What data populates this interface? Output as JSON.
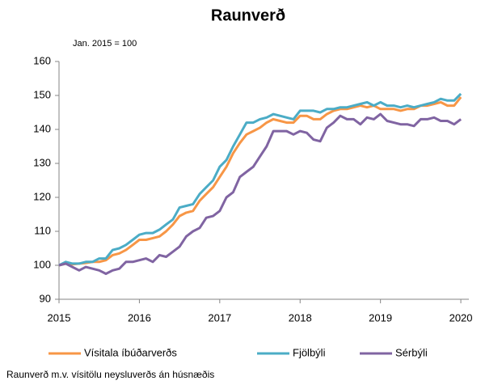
{
  "chart_data": {
    "type": "line",
    "title": "Raunverð",
    "subtitle": "Jan. 2015 = 100",
    "note": "Raunverð m.v. vísitölu neysluverðs án húsnæðis",
    "x": [
      2015,
      2015.083,
      2015.167,
      2015.25,
      2015.333,
      2015.417,
      2015.5,
      2015.583,
      2015.667,
      2015.75,
      2015.833,
      2015.917,
      2016,
      2016.083,
      2016.167,
      2016.25,
      2016.333,
      2016.417,
      2016.5,
      2016.583,
      2016.667,
      2016.75,
      2016.833,
      2016.917,
      2017,
      2017.083,
      2017.167,
      2017.25,
      2017.333,
      2017.417,
      2017.5,
      2017.583,
      2017.667,
      2017.75,
      2017.833,
      2017.917,
      2018,
      2018.083,
      2018.167,
      2018.25,
      2018.333,
      2018.417,
      2018.5,
      2018.583,
      2018.667,
      2018.75,
      2018.833,
      2018.917,
      2019,
      2019.083,
      2019.167,
      2019.25,
      2019.333,
      2019.417,
      2019.5,
      2019.583,
      2019.667,
      2019.75,
      2019.833,
      2019.917,
      2020
    ],
    "series": [
      {
        "name": "Vísitala íbúðarverðs",
        "color": "#f79646",
        "values": [
          100,
          100.5,
          100.3,
          100.5,
          100.7,
          101,
          101,
          101.5,
          103,
          103.5,
          104.5,
          106,
          107.5,
          107.5,
          108,
          108.5,
          110,
          112,
          114.5,
          115.5,
          116,
          119,
          121,
          123,
          126,
          129,
          133,
          136,
          138.5,
          139.5,
          140.5,
          142,
          143,
          142.5,
          142,
          142,
          144,
          144,
          143,
          143,
          144.5,
          145.5,
          146,
          146,
          146.5,
          147,
          146.5,
          147,
          146,
          146,
          146,
          145.5,
          146,
          146,
          147,
          147,
          147.5,
          148,
          147,
          147,
          149.5
        ]
      },
      {
        "name": "Fjölbýli",
        "color": "#4bacc6",
        "values": [
          100,
          101,
          100.5,
          100.5,
          101,
          101,
          102,
          102,
          104.5,
          105,
          106,
          107.5,
          109,
          109.5,
          109.5,
          110.5,
          112,
          113.5,
          117,
          117.5,
          118,
          121,
          123,
          125,
          129,
          131,
          135,
          138.5,
          142,
          142,
          143,
          143.5,
          144.5,
          144,
          143.5,
          143,
          145.5,
          145.5,
          145.5,
          145,
          146,
          146,
          146.5,
          146.5,
          147,
          147.5,
          148,
          147,
          148,
          147,
          147,
          146.5,
          147,
          146.5,
          147,
          147.5,
          148,
          149,
          148.5,
          148.5,
          150.5
        ]
      },
      {
        "name": "Sérbýli",
        "color": "#8064a2",
        "values": [
          100,
          100.5,
          99.5,
          98.5,
          99.5,
          99,
          98.5,
          97.5,
          98.5,
          99,
          101,
          101,
          101.5,
          102,
          101,
          103,
          102.5,
          104,
          105.5,
          108.5,
          110,
          111,
          114,
          114.5,
          116,
          120,
          121.5,
          126,
          127.5,
          129,
          132,
          135,
          139.5,
          139.5,
          139.5,
          138.5,
          139.5,
          139,
          137,
          136.5,
          140.5,
          142,
          144,
          143,
          143,
          141.5,
          143.5,
          143,
          144.5,
          142.5,
          142,
          141.5,
          141.5,
          141,
          143,
          143,
          143.5,
          142.5,
          142.5,
          141.5,
          143
        ]
      }
    ],
    "xlim": [
      2015,
      2020.1
    ],
    "xticks": [
      2015,
      2016,
      2017,
      2018,
      2019,
      2020
    ],
    "ylim": [
      90,
      160
    ],
    "yticks": [
      90,
      100,
      110,
      120,
      130,
      140,
      150,
      160
    ],
    "legend": "bottom"
  }
}
